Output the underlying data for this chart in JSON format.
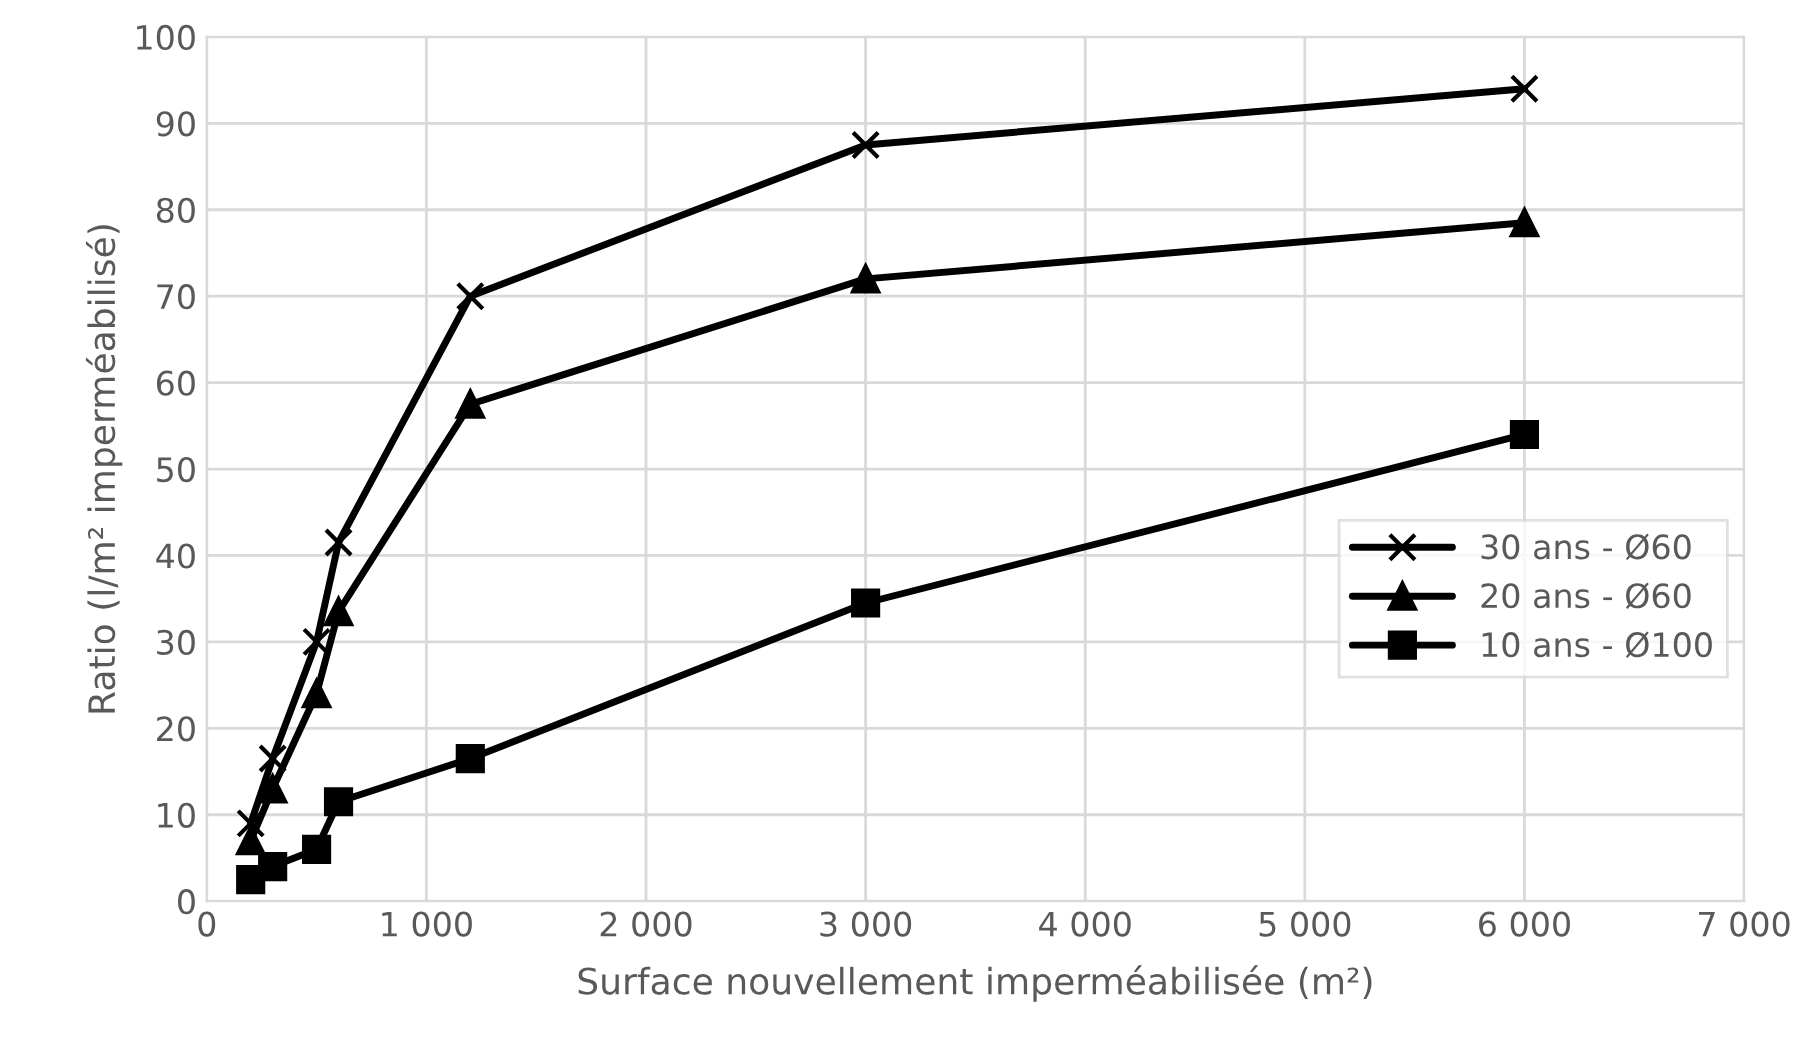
{
  "chart_data": {
    "type": "line",
    "xlabel": "Surface nouvellement imperméabilisée (m²)",
    "ylabel": "Ratio (l/m² imperméabilisé)",
    "x": [
      200,
      300,
      500,
      600,
      1200,
      3000,
      6000
    ],
    "series": [
      {
        "name": "30 ans - Ø60",
        "color": "#000000",
        "marker": "cross",
        "values": [
          9,
          16.5,
          30,
          41.5,
          70,
          87.5,
          94
        ]
      },
      {
        "name": "20 ans - Ø60",
        "color": "#000000",
        "marker": "triangle",
        "values": [
          7,
          13,
          24,
          33.5,
          57.5,
          72,
          78.5
        ]
      },
      {
        "name": "10 ans - Ø100",
        "color": "#000000",
        "marker": "square",
        "values": [
          2.5,
          4,
          6,
          11.5,
          16.5,
          34.5,
          54
        ]
      }
    ],
    "xlim": [
      0,
      7000
    ],
    "xticks": [
      0,
      {
        "value": 1000,
        "label": "1 000"
      },
      {
        "value": 2000,
        "label": "2 000"
      },
      {
        "value": 3000,
        "label": "3 000"
      },
      {
        "value": 4000,
        "label": "4 000"
      },
      {
        "value": 5000,
        "label": "5 000"
      },
      {
        "value": 6000,
        "label": "6 000"
      },
      {
        "value": 7000,
        "label": "7 000"
      }
    ],
    "ylim": [
      0,
      100
    ],
    "yticks": [
      0,
      10,
      20,
      30,
      40,
      50,
      60,
      70,
      80,
      90,
      100
    ],
    "grid": true,
    "legend": "right",
    "line_style": "solid"
  }
}
